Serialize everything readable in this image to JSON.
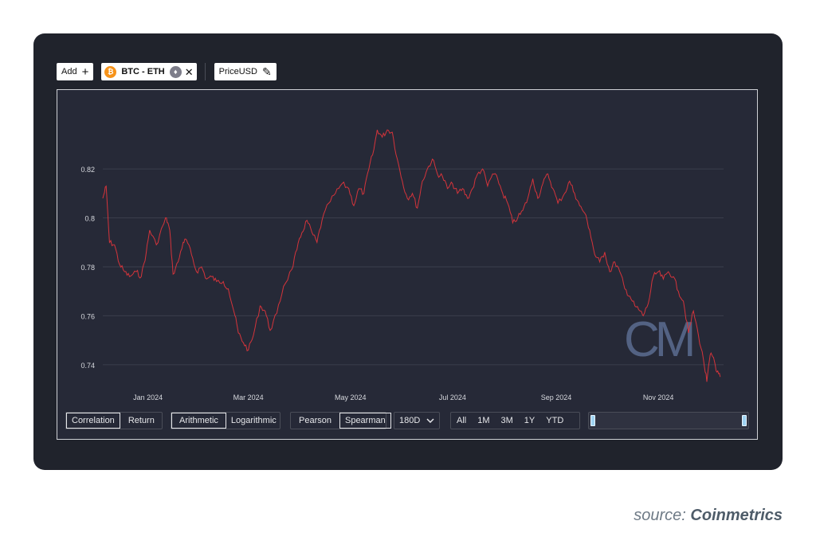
{
  "toolbar": {
    "add_label": "Add",
    "add_icon": "plus-icon",
    "pair_label": "BTC - ETH",
    "btc_glyph": "₿",
    "eth_glyph": "♦",
    "remove_icon": "✕",
    "metric_label": "PriceUSD",
    "edit_icon": "✎"
  },
  "controls": {
    "type": [
      "Correlation",
      "Return"
    ],
    "scale": [
      "Arithmetic",
      "Logarithmic"
    ],
    "method": [
      "Pearson",
      "Spearman"
    ],
    "window": "180D",
    "window_icon": "chevron-down-icon",
    "ranges": [
      "All",
      "1M",
      "3M",
      "1Y",
      "YTD"
    ]
  },
  "colors": {
    "line": "#d4343b",
    "background": "#262937",
    "card": "#20232c",
    "watermark": "#5c6d91"
  },
  "watermark": "CM",
  "source": {
    "prefix": "source:",
    "name": "Coinmetrics"
  },
  "chart_data": {
    "type": "line",
    "title": "",
    "xlabel": "",
    "ylabel": "",
    "x_ticks": [
      "Jan 2024",
      "Mar 2024",
      "May 2024",
      "Jul 2024",
      "Sep 2024",
      "Nov 2024"
    ],
    "y_ticks": [
      "0.74",
      "0.76",
      "0.78",
      "0.8",
      "0.82"
    ],
    "ylim": [
      0.7305,
      0.8425
    ],
    "xlim": [
      "2023-12-05",
      "2024-12-10"
    ],
    "grid": true,
    "series": [
      {
        "color": "#d4343b",
        "points": [
          [
            "2023-12-05",
            0.808
          ],
          [
            "2023-12-07",
            0.813
          ],
          [
            "2023-12-09",
            0.79
          ],
          [
            "2023-12-12",
            0.789
          ],
          [
            "2023-12-15",
            0.781
          ],
          [
            "2023-12-18",
            0.778
          ],
          [
            "2023-12-21",
            0.776
          ],
          [
            "2023-12-25",
            0.778
          ],
          [
            "2023-12-28",
            0.776
          ],
          [
            "2023-12-31",
            0.786
          ],
          [
            "2024-01-02",
            0.795
          ],
          [
            "2024-01-06",
            0.789
          ],
          [
            "2024-01-10",
            0.797
          ],
          [
            "2024-01-12",
            0.8
          ],
          [
            "2024-01-14",
            0.795
          ],
          [
            "2024-01-16",
            0.777
          ],
          [
            "2024-01-19",
            0.782
          ],
          [
            "2024-01-22",
            0.79
          ],
          [
            "2024-01-24",
            0.791
          ],
          [
            "2024-01-27",
            0.785
          ],
          [
            "2024-01-30",
            0.778
          ],
          [
            "2024-02-02",
            0.78
          ],
          [
            "2024-02-05",
            0.775
          ],
          [
            "2024-02-08",
            0.776
          ],
          [
            "2024-02-11",
            0.774
          ],
          [
            "2024-02-15",
            0.774
          ],
          [
            "2024-02-18",
            0.771
          ],
          [
            "2024-02-22",
            0.76
          ],
          [
            "2024-02-24",
            0.753
          ],
          [
            "2024-02-27",
            0.749
          ],
          [
            "2024-03-01",
            0.746
          ],
          [
            "2024-03-04",
            0.752
          ],
          [
            "2024-03-08",
            0.764
          ],
          [
            "2024-03-11",
            0.762
          ],
          [
            "2024-03-14",
            0.754
          ],
          [
            "2024-03-18",
            0.761
          ],
          [
            "2024-03-22",
            0.772
          ],
          [
            "2024-03-27",
            0.779
          ],
          [
            "2024-03-30",
            0.787
          ],
          [
            "2024-04-02",
            0.794
          ],
          [
            "2024-04-05",
            0.799
          ],
          [
            "2024-04-08",
            0.794
          ],
          [
            "2024-04-11",
            0.79
          ],
          [
            "2024-04-14",
            0.799
          ],
          [
            "2024-04-18",
            0.806
          ],
          [
            "2024-04-22",
            0.81
          ],
          [
            "2024-04-26",
            0.814
          ],
          [
            "2024-04-30",
            0.812
          ],
          [
            "2024-05-03",
            0.805
          ],
          [
            "2024-05-06",
            0.812
          ],
          [
            "2024-05-09",
            0.81
          ],
          [
            "2024-05-12",
            0.82
          ],
          [
            "2024-05-15",
            0.828
          ],
          [
            "2024-05-17",
            0.836
          ],
          [
            "2024-05-20",
            0.833
          ],
          [
            "2024-05-23",
            0.836
          ],
          [
            "2024-05-26",
            0.835
          ],
          [
            "2024-05-29",
            0.824
          ],
          [
            "2024-06-01",
            0.815
          ],
          [
            "2024-06-04",
            0.808
          ],
          [
            "2024-06-07",
            0.81
          ],
          [
            "2024-06-10",
            0.804
          ],
          [
            "2024-06-13",
            0.815
          ],
          [
            "2024-06-16",
            0.82
          ],
          [
            "2024-06-19",
            0.824
          ],
          [
            "2024-06-22",
            0.818
          ],
          [
            "2024-06-25",
            0.817
          ],
          [
            "2024-06-28",
            0.812
          ],
          [
            "2024-07-01",
            0.814
          ],
          [
            "2024-07-04",
            0.81
          ],
          [
            "2024-07-07",
            0.812
          ],
          [
            "2024-07-10",
            0.808
          ],
          [
            "2024-07-13",
            0.812
          ],
          [
            "2024-07-16",
            0.818
          ],
          [
            "2024-07-19",
            0.82
          ],
          [
            "2024-07-22",
            0.813
          ],
          [
            "2024-07-25",
            0.818
          ],
          [
            "2024-07-28",
            0.816
          ],
          [
            "2024-07-31",
            0.81
          ],
          [
            "2024-08-03",
            0.806
          ],
          [
            "2024-08-06",
            0.798
          ],
          [
            "2024-08-09",
            0.8
          ],
          [
            "2024-08-12",
            0.803
          ],
          [
            "2024-08-15",
            0.808
          ],
          [
            "2024-08-18",
            0.816
          ],
          [
            "2024-08-21",
            0.808
          ],
          [
            "2024-08-24",
            0.814
          ],
          [
            "2024-08-27",
            0.818
          ],
          [
            "2024-08-30",
            0.812
          ],
          [
            "2024-09-02",
            0.806
          ],
          [
            "2024-09-06",
            0.81
          ],
          [
            "2024-09-09",
            0.815
          ],
          [
            "2024-09-12",
            0.81
          ],
          [
            "2024-09-15",
            0.805
          ],
          [
            "2024-09-18",
            0.802
          ],
          [
            "2024-09-21",
            0.795
          ],
          [
            "2024-09-24",
            0.785
          ],
          [
            "2024-09-27",
            0.782
          ],
          [
            "2024-09-30",
            0.786
          ],
          [
            "2024-10-03",
            0.778
          ],
          [
            "2024-10-06",
            0.782
          ],
          [
            "2024-10-09",
            0.778
          ],
          [
            "2024-10-12",
            0.771
          ],
          [
            "2024-10-15",
            0.768
          ],
          [
            "2024-10-18",
            0.764
          ],
          [
            "2024-10-21",
            0.762
          ],
          [
            "2024-10-23",
            0.76
          ],
          [
            "2024-10-26",
            0.765
          ],
          [
            "2024-10-29",
            0.776
          ],
          [
            "2024-11-01",
            0.778
          ],
          [
            "2024-11-04",
            0.775
          ],
          [
            "2024-11-07",
            0.778
          ],
          [
            "2024-11-10",
            0.776
          ],
          [
            "2024-11-13",
            0.77
          ],
          [
            "2024-11-16",
            0.766
          ],
          [
            "2024-11-19",
            0.753
          ],
          [
            "2024-11-22",
            0.762
          ],
          [
            "2024-11-25",
            0.752
          ],
          [
            "2024-11-28",
            0.742
          ],
          [
            "2024-11-30",
            0.733
          ],
          [
            "2024-12-02",
            0.744
          ],
          [
            "2024-12-04",
            0.743
          ],
          [
            "2024-12-06",
            0.737
          ],
          [
            "2024-12-08",
            0.735
          ]
        ]
      }
    ]
  }
}
